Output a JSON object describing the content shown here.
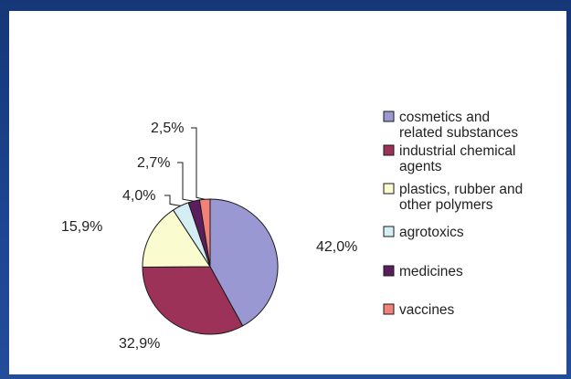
{
  "chart_data": {
    "type": "pie",
    "title": "",
    "legend_position": "right",
    "slices": [
      {
        "name": "cosmetics and related substances",
        "value": 42.0,
        "label": "42,0%",
        "color": "#9a98d2"
      },
      {
        "name": "industrial chemical agents",
        "value": 32.9,
        "label": "32,9%",
        "color": "#9c3258"
      },
      {
        "name": "plastics, rubber and other polymers",
        "value": 15.9,
        "label": "15,9%",
        "color": "#fbfbd0"
      },
      {
        "name": "agrotoxics",
        "value": 4.0,
        "label": "4,0%",
        "color": "#d4eef4"
      },
      {
        "name": "medicines",
        "value": 2.7,
        "label": "2,7%",
        "color": "#5a1e5e"
      },
      {
        "name": "vaccines",
        "value": 2.5,
        "label": "2,5%",
        "color": "#f08278"
      }
    ],
    "legend": [
      [
        "cosmetics and",
        "related substances"
      ],
      [
        "industrial chemical",
        "agents"
      ],
      [
        "plastics, rubber and",
        "other polymers"
      ],
      [
        "agrotoxics"
      ],
      [
        "medicines"
      ],
      [
        "vaccines"
      ]
    ]
  }
}
